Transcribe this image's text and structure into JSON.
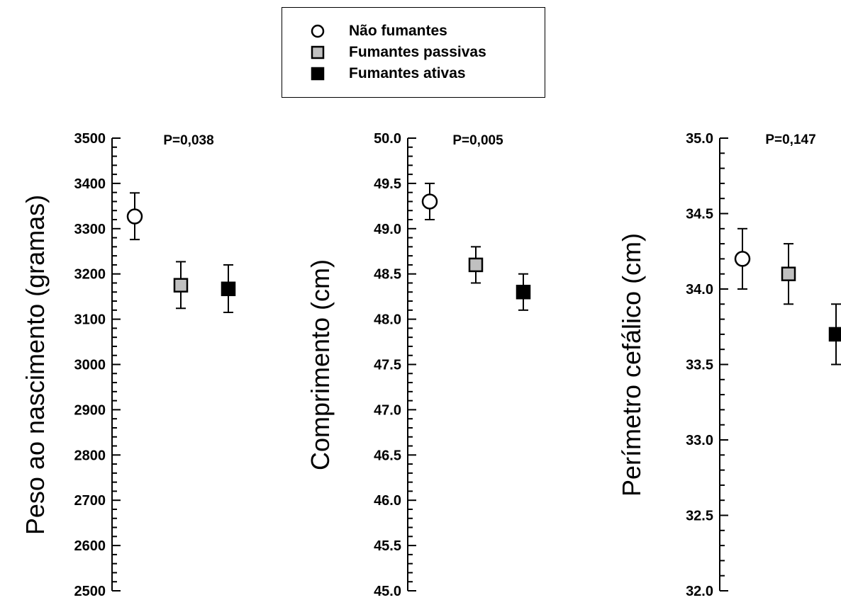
{
  "legend": {
    "items": [
      {
        "label": "Não fumantes",
        "marker": "circle",
        "fill": "#ffffff"
      },
      {
        "label": "Fumantes passivas",
        "marker": "square",
        "fill": "#c0c0c0"
      },
      {
        "label": "Fumantes ativas",
        "marker": "square",
        "fill": "#000000"
      }
    ]
  },
  "chart_data": [
    {
      "type": "scatter",
      "title": "",
      "ylabel": "Peso ao nascimento (gramas)",
      "annotation": "P=0,038",
      "ylim": [
        2500,
        3500
      ],
      "yticks": [
        "2500",
        "2600",
        "2700",
        "2800",
        "2900",
        "3000",
        "3100",
        "3200",
        "3300",
        "3400",
        "3500"
      ],
      "series": [
        {
          "name": "Não fumantes",
          "value": 3327,
          "lower": 3276,
          "upper": 3379
        },
        {
          "name": "Fumantes passivas",
          "value": 3175,
          "lower": 3124,
          "upper": 3227
        },
        {
          "name": "Fumantes ativas",
          "value": 3167,
          "lower": 3115,
          "upper": 3220
        }
      ]
    },
    {
      "type": "scatter",
      "title": "",
      "ylabel": "Comprimento (cm)",
      "annotation": "P=0,005",
      "ylim": [
        45.0,
        50.0
      ],
      "yticks": [
        "45.0",
        "45.5",
        "46.0",
        "46.5",
        "47.0",
        "47.5",
        "48.0",
        "48.5",
        "49.0",
        "49.5",
        "50.0"
      ],
      "series": [
        {
          "name": "Não fumantes",
          "value": 49.3,
          "lower": 49.1,
          "upper": 49.5
        },
        {
          "name": "Fumantes passivas",
          "value": 48.6,
          "lower": 48.4,
          "upper": 48.8
        },
        {
          "name": "Fumantes ativas",
          "value": 48.3,
          "lower": 48.1,
          "upper": 48.5
        }
      ]
    },
    {
      "type": "scatter",
      "title": "",
      "ylabel": "Perímetro cefálico (cm)",
      "annotation": "P=0,147",
      "ylim": [
        32.0,
        35.0
      ],
      "yticks": [
        "32.0",
        "32.5",
        "33.0",
        "33.5",
        "34.0",
        "34.5",
        "35.0"
      ],
      "series": [
        {
          "name": "Não fumantes",
          "value": 34.2,
          "lower": 34.0,
          "upper": 34.4
        },
        {
          "name": "Fumantes passivas",
          "value": 34.1,
          "lower": 33.9,
          "upper": 34.3
        },
        {
          "name": "Fumantes ativas",
          "value": 33.7,
          "lower": 33.5,
          "upper": 33.9
        }
      ]
    }
  ]
}
